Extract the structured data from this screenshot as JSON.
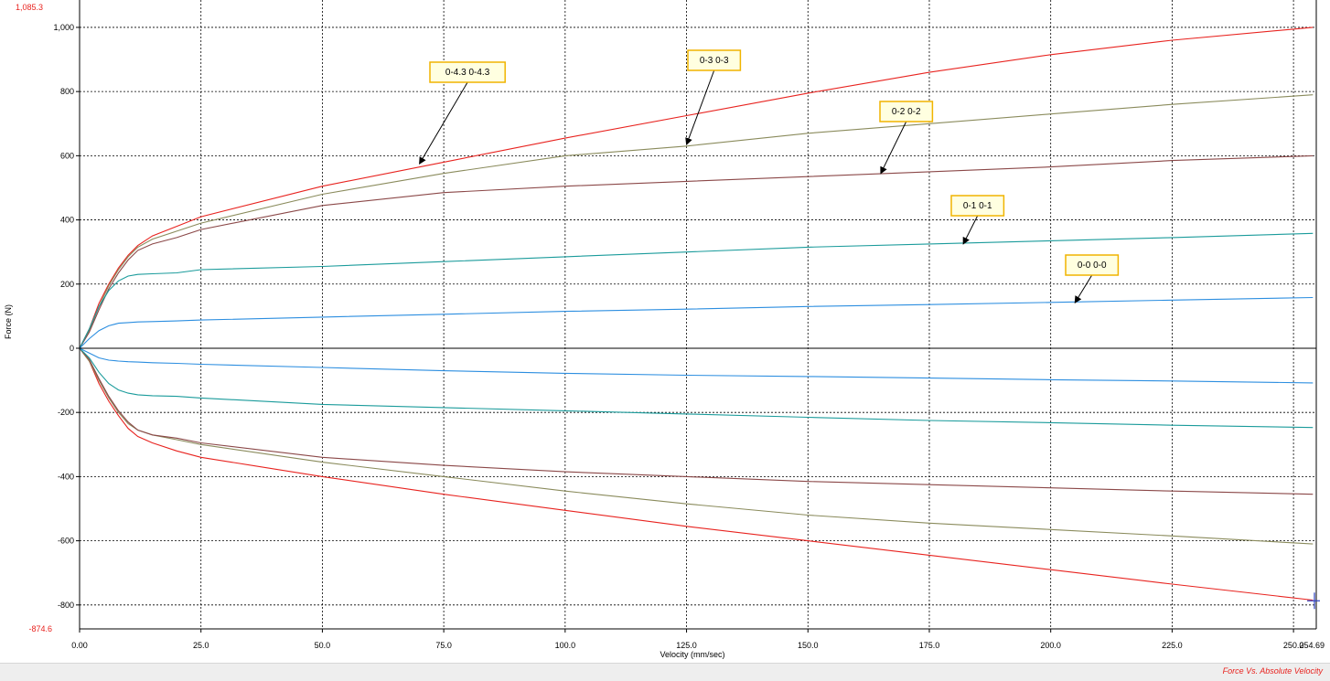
{
  "status_bar": {
    "text": "Force Vs. Absolute Velocity",
    "color": "#e8231f"
  },
  "chart_data": {
    "type": "line",
    "title": "",
    "xlabel": "Velocity (mm/sec)",
    "ylabel": "Force (N)",
    "xlim": [
      0,
      254.69
    ],
    "ylim": [
      -874.6,
      1085.3
    ],
    "x_ticks": [
      "0.00",
      "25.0",
      "50.0",
      "75.0",
      "100.0",
      "125.0",
      "150.0",
      "175.0",
      "200.0",
      "225.0",
      "250.0"
    ],
    "x_tick_values": [
      0,
      25,
      50,
      75,
      100,
      125,
      150,
      175,
      200,
      225,
      250
    ],
    "x_max_label": "254.69",
    "y_ticks": [
      "1,000",
      "800",
      "600",
      "400",
      "200",
      "0",
      "-200",
      "-400",
      "-600",
      "-800"
    ],
    "y_tick_values": [
      1000,
      800,
      600,
      400,
      200,
      0,
      -200,
      -400,
      -600,
      -800
    ],
    "y_max_label": "1,085.3",
    "y_min_label": "-874.6",
    "grid": true,
    "colors": {
      "axis_extreme_label": "#e8231f",
      "axis": "#000000",
      "grid": "#000000",
      "zero_line": "#000000",
      "callout_bg": "#ffffe0",
      "callout_border": "#f0b400"
    },
    "series": [
      {
        "name": "0-4.3 0-4.3",
        "color": "#e8231f",
        "upper": [
          [
            0,
            0
          ],
          [
            2,
            60
          ],
          [
            4,
            140
          ],
          [
            6,
            200
          ],
          [
            8,
            250
          ],
          [
            10,
            290
          ],
          [
            12,
            320
          ],
          [
            15,
            350
          ],
          [
            20,
            380
          ],
          [
            25,
            410
          ],
          [
            50,
            505
          ],
          [
            75,
            580
          ],
          [
            100,
            655
          ],
          [
            125,
            725
          ],
          [
            150,
            795
          ],
          [
            175,
            860
          ],
          [
            200,
            915
          ],
          [
            225,
            960
          ],
          [
            254,
            1000
          ]
        ],
        "lower": [
          [
            0,
            0
          ],
          [
            2,
            -40
          ],
          [
            4,
            -110
          ],
          [
            6,
            -165
          ],
          [
            8,
            -210
          ],
          [
            10,
            -250
          ],
          [
            12,
            -275
          ],
          [
            15,
            -295
          ],
          [
            20,
            -320
          ],
          [
            25,
            -340
          ],
          [
            50,
            -400
          ],
          [
            75,
            -455
          ],
          [
            100,
            -505
          ],
          [
            125,
            -555
          ],
          [
            150,
            -600
          ],
          [
            175,
            -645
          ],
          [
            200,
            -690
          ],
          [
            225,
            -735
          ],
          [
            254,
            -785
          ]
        ]
      },
      {
        "name": "0-3 0-3",
        "color": "#8a8b5c",
        "upper": [
          [
            0,
            0
          ],
          [
            2,
            55
          ],
          [
            4,
            130
          ],
          [
            6,
            195
          ],
          [
            8,
            245
          ],
          [
            10,
            285
          ],
          [
            12,
            315
          ],
          [
            15,
            340
          ],
          [
            20,
            365
          ],
          [
            25,
            390
          ],
          [
            50,
            480
          ],
          [
            75,
            545
          ],
          [
            100,
            600
          ],
          [
            125,
            630
          ],
          [
            150,
            670
          ],
          [
            175,
            700
          ],
          [
            200,
            730
          ],
          [
            225,
            760
          ],
          [
            254,
            790
          ]
        ],
        "lower": [
          [
            0,
            0
          ],
          [
            2,
            -40
          ],
          [
            4,
            -100
          ],
          [
            6,
            -155
          ],
          [
            8,
            -200
          ],
          [
            10,
            -235
          ],
          [
            12,
            -255
          ],
          [
            15,
            -270
          ],
          [
            20,
            -285
          ],
          [
            25,
            -300
          ],
          [
            50,
            -355
          ],
          [
            75,
            -400
          ],
          [
            100,
            -445
          ],
          [
            125,
            -485
          ],
          [
            150,
            -520
          ],
          [
            175,
            -545
          ],
          [
            200,
            -565
          ],
          [
            225,
            -585
          ],
          [
            254,
            -610
          ]
        ]
      },
      {
        "name": "0-2 0-2",
        "color": "#8b4848",
        "upper": [
          [
            0,
            0
          ],
          [
            2,
            50
          ],
          [
            4,
            120
          ],
          [
            6,
            185
          ],
          [
            8,
            235
          ],
          [
            10,
            275
          ],
          [
            12,
            305
          ],
          [
            15,
            325
          ],
          [
            20,
            345
          ],
          [
            25,
            370
          ],
          [
            50,
            445
          ],
          [
            75,
            485
          ],
          [
            100,
            505
          ],
          [
            125,
            520
          ],
          [
            150,
            535
          ],
          [
            175,
            550
          ],
          [
            200,
            565
          ],
          [
            225,
            585
          ],
          [
            254,
            600
          ]
        ],
        "lower": [
          [
            0,
            0
          ],
          [
            2,
            -35
          ],
          [
            4,
            -95
          ],
          [
            6,
            -150
          ],
          [
            8,
            -195
          ],
          [
            10,
            -230
          ],
          [
            12,
            -255
          ],
          [
            15,
            -270
          ],
          [
            20,
            -280
          ],
          [
            25,
            -295
          ],
          [
            50,
            -340
          ],
          [
            75,
            -365
          ],
          [
            100,
            -385
          ],
          [
            125,
            -400
          ],
          [
            150,
            -415
          ],
          [
            175,
            -425
          ],
          [
            200,
            -435
          ],
          [
            225,
            -445
          ],
          [
            254,
            -455
          ]
        ]
      },
      {
        "name": "0-1 0-1",
        "color": "#1a9b9b",
        "upper": [
          [
            0,
            0
          ],
          [
            2,
            60
          ],
          [
            4,
            130
          ],
          [
            6,
            180
          ],
          [
            8,
            210
          ],
          [
            10,
            225
          ],
          [
            12,
            230
          ],
          [
            15,
            232
          ],
          [
            20,
            235
          ],
          [
            25,
            245
          ],
          [
            50,
            255
          ],
          [
            75,
            270
          ],
          [
            100,
            285
          ],
          [
            125,
            300
          ],
          [
            150,
            315
          ],
          [
            175,
            325
          ],
          [
            200,
            335
          ],
          [
            225,
            345
          ],
          [
            254,
            358
          ]
        ],
        "lower": [
          [
            0,
            0
          ],
          [
            2,
            -30
          ],
          [
            4,
            -75
          ],
          [
            6,
            -110
          ],
          [
            8,
            -130
          ],
          [
            10,
            -140
          ],
          [
            12,
            -145
          ],
          [
            15,
            -148
          ],
          [
            20,
            -150
          ],
          [
            25,
            -155
          ],
          [
            50,
            -175
          ],
          [
            75,
            -185
          ],
          [
            100,
            -195
          ],
          [
            125,
            -205
          ],
          [
            150,
            -215
          ],
          [
            175,
            -225
          ],
          [
            200,
            -232
          ],
          [
            225,
            -240
          ],
          [
            254,
            -247
          ]
        ]
      },
      {
        "name": "0-0 0-0",
        "color": "#2c8ee0",
        "upper": [
          [
            0,
            0
          ],
          [
            2,
            30
          ],
          [
            4,
            55
          ],
          [
            6,
            70
          ],
          [
            8,
            78
          ],
          [
            10,
            80
          ],
          [
            12,
            82
          ],
          [
            15,
            83
          ],
          [
            20,
            85
          ],
          [
            25,
            88
          ],
          [
            50,
            97
          ],
          [
            75,
            106
          ],
          [
            100,
            115
          ],
          [
            125,
            122
          ],
          [
            150,
            130
          ],
          [
            175,
            136
          ],
          [
            200,
            143
          ],
          [
            225,
            150
          ],
          [
            254,
            158
          ]
        ],
        "lower": [
          [
            0,
            0
          ],
          [
            2,
            -15
          ],
          [
            4,
            -30
          ],
          [
            6,
            -37
          ],
          [
            8,
            -40
          ],
          [
            10,
            -42
          ],
          [
            12,
            -43
          ],
          [
            15,
            -45
          ],
          [
            20,
            -47
          ],
          [
            25,
            -50
          ],
          [
            50,
            -60
          ],
          [
            75,
            -70
          ],
          [
            100,
            -78
          ],
          [
            125,
            -84
          ],
          [
            150,
            -88
          ],
          [
            175,
            -93
          ],
          [
            200,
            -98
          ],
          [
            225,
            -102
          ],
          [
            254,
            -108
          ]
        ]
      }
    ],
    "annotations": [
      {
        "text": "0-4.3 0-4.3",
        "series": "0-4.3 0-4.3",
        "x": 70,
        "y": 575
      },
      {
        "text": "0-3 0-3",
        "series": "0-3 0-3",
        "x": 125,
        "y": 635
      },
      {
        "text": "0-2 0-2",
        "series": "0-2 0-2",
        "x": 165,
        "y": 545
      },
      {
        "text": "0-1 0-1",
        "series": "0-1 0-1",
        "x": 182,
        "y": 325
      },
      {
        "text": "0-0 0-0",
        "series": "0-0 0-0",
        "x": 205,
        "y": 142
      }
    ],
    "cursor": {
      "x": 254.69,
      "y": -787,
      "color": "#2b3fbf"
    }
  }
}
